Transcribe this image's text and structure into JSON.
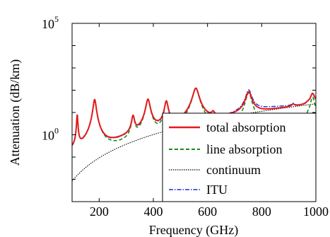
{
  "chart_data": {
    "type": "line",
    "title": "",
    "xlabel": "Frequency (GHz)",
    "ylabel": "Attenuation (dB/km)",
    "xlim": [
      100,
      1000
    ],
    "ylim_log10": [
      -3,
      5
    ],
    "yscale": "log",
    "grid": false,
    "legend_position": "lower-right",
    "x_ticks": [
      {
        "value": 200,
        "label": "200"
      },
      {
        "value": 400,
        "label": "400"
      },
      {
        "value": 600,
        "label": "600"
      },
      {
        "value": 800,
        "label": "800"
      },
      {
        "value": 1000,
        "label": "1000"
      }
    ],
    "y_ticks": [
      {
        "exp": 0,
        "base": "10",
        "sup": "0"
      },
      {
        "exp": 5,
        "base": "10",
        "sup": "5"
      }
    ],
    "lines": [
      {
        "center": 119,
        "width": 2,
        "height": 0.8
      },
      {
        "center": 183.3,
        "width": 5,
        "height": 1.5
      },
      {
        "center": 325.2,
        "width": 5,
        "height": 0.7
      },
      {
        "center": 380.2,
        "width": 7,
        "height": 1.5
      },
      {
        "center": 448,
        "width": 6,
        "height": 1.4
      },
      {
        "center": 474.7,
        "width": 5,
        "height": 0.35
      },
      {
        "center": 556.9,
        "width": 10,
        "height": 2.0
      },
      {
        "center": 620.7,
        "width": 6,
        "height": 0.5
      },
      {
        "center": 752,
        "width": 10,
        "height": 1.8
      },
      {
        "center": 916,
        "width": 6,
        "height": 0.6
      },
      {
        "center": 970,
        "width": 7,
        "height": 0.4
      },
      {
        "center": 988,
        "width": 8,
        "height": 1.6
      }
    ],
    "series": [
      {
        "name": "total absorption",
        "color": "#e31a1c",
        "style": "solid"
      },
      {
        "name": "line absorption",
        "color": "#1a8a1a",
        "style": "dashed"
      },
      {
        "name": "continuum",
        "color": "#000000",
        "style": "dotted"
      },
      {
        "name": "ITU",
        "color": "#1f2fd6",
        "style": "dashdot"
      }
    ]
  }
}
